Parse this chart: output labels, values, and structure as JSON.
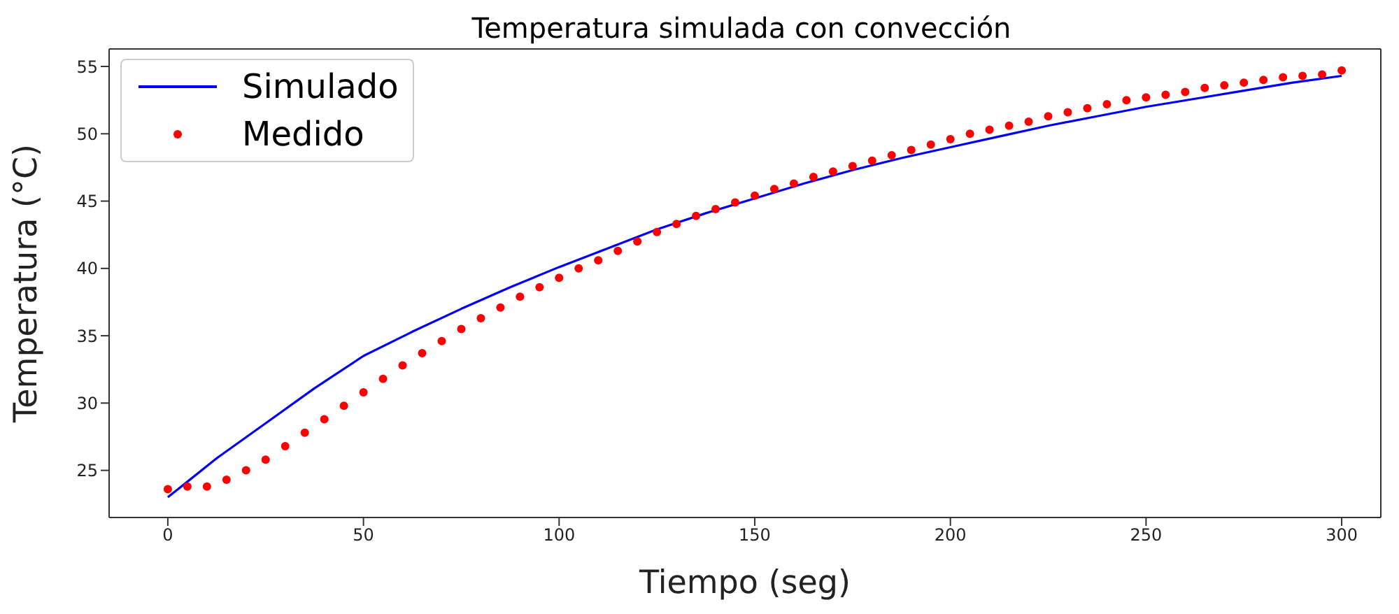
{
  "chart_data": {
    "type": "line",
    "title": "Temperatura simulada con convección",
    "xlabel": "Tiempo (seg)",
    "ylabel": "Temperatura (°C)",
    "xlim": [
      -15,
      310
    ],
    "ylim": [
      21.5,
      56.3
    ],
    "xticks": [
      0,
      50,
      100,
      150,
      200,
      250,
      300
    ],
    "yticks": [
      25,
      30,
      35,
      40,
      45,
      50,
      55
    ],
    "grid": false,
    "legend": "top left",
    "series": [
      {
        "name": "Simulado",
        "color": "#0000ff",
        "x": [
          0,
          12.5,
          25,
          37.5,
          50,
          62.5,
          75,
          87.5,
          100,
          112.5,
          125,
          137.5,
          150,
          162.5,
          175,
          187.5,
          200,
          212.5,
          225,
          237.5,
          250,
          262.5,
          275,
          287.5,
          300
        ],
        "values": [
          23.0,
          25.9,
          28.5,
          31.1,
          33.5,
          35.3,
          37.0,
          38.6,
          40.1,
          41.5,
          42.9,
          44.1,
          45.2,
          46.3,
          47.3,
          48.2,
          49.0,
          49.8,
          50.6,
          51.3,
          52.0,
          52.6,
          53.2,
          53.8,
          54.3
        ]
      },
      {
        "name": "Medido",
        "type": "scatter",
        "marker": "circle",
        "color": "#ff0000",
        "x": [
          0,
          5,
          10,
          15,
          20,
          25,
          30,
          35,
          40,
          45,
          50,
          55,
          60,
          65,
          70,
          75,
          80,
          85,
          90,
          95,
          100,
          105,
          110,
          115,
          120,
          125,
          130,
          135,
          140,
          145,
          150,
          155,
          160,
          165,
          170,
          175,
          180,
          185,
          190,
          195,
          200,
          205,
          210,
          215,
          220,
          225,
          230,
          235,
          240,
          245,
          250,
          255,
          260,
          265,
          270,
          275,
          280,
          285,
          290,
          295,
          300
        ],
        "values": [
          23.6,
          23.8,
          23.8,
          24.3,
          25.0,
          25.8,
          26.8,
          27.8,
          28.8,
          29.8,
          30.8,
          31.8,
          32.8,
          33.7,
          34.6,
          35.5,
          36.3,
          37.1,
          37.9,
          38.6,
          39.3,
          40.0,
          40.6,
          41.3,
          42.0,
          42.7,
          43.3,
          43.9,
          44.4,
          44.9,
          45.4,
          45.9,
          46.3,
          46.8,
          47.2,
          47.6,
          48.0,
          48.4,
          48.8,
          49.2,
          49.6,
          50.0,
          50.3,
          50.6,
          50.9,
          51.3,
          51.6,
          51.9,
          52.2,
          52.5,
          52.7,
          52.9,
          53.1,
          53.4,
          53.6,
          53.8,
          54.0,
          54.2,
          54.3,
          54.4,
          54.7
        ]
      }
    ]
  }
}
